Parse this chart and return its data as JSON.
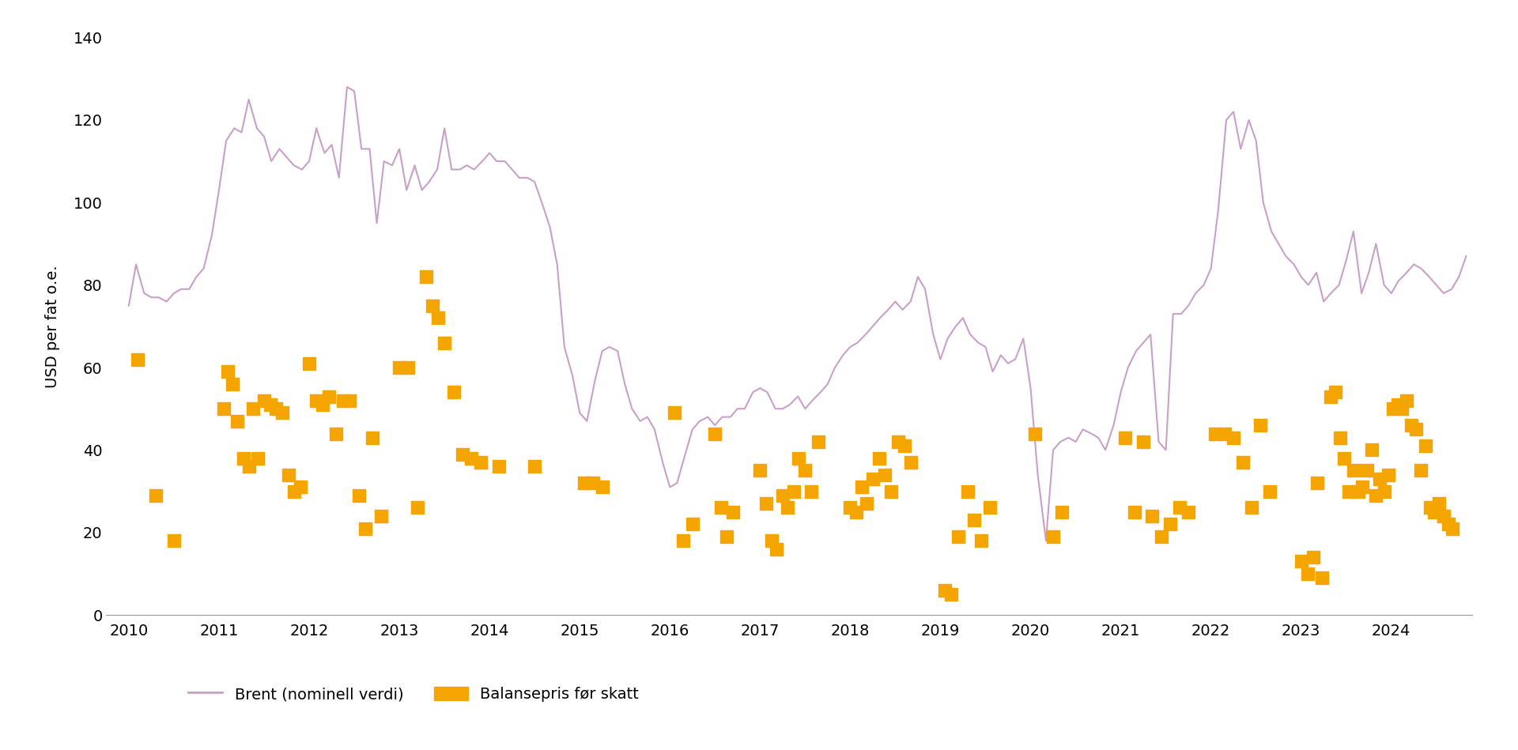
{
  "title": "",
  "ylabel": "USD per fat o.e.",
  "background_color": "#ffffff",
  "line_color": "#c9a0c9",
  "scatter_color": "#f5a500",
  "legend_line_label": "Brent (nominell verdi)",
  "legend_scatter_label": "Balansepris før skatt",
  "ylim": [
    0,
    140
  ],
  "yticks": [
    0,
    20,
    40,
    60,
    80,
    100,
    120,
    140
  ],
  "xlim": [
    2009.75,
    2024.9
  ],
  "brent_data": [
    [
      2010.0,
      75
    ],
    [
      2010.08,
      85
    ],
    [
      2010.17,
      78
    ],
    [
      2010.25,
      77
    ],
    [
      2010.33,
      77
    ],
    [
      2010.42,
      76
    ],
    [
      2010.5,
      78
    ],
    [
      2010.58,
      79
    ],
    [
      2010.67,
      79
    ],
    [
      2010.75,
      82
    ],
    [
      2010.83,
      84
    ],
    [
      2010.92,
      92
    ],
    [
      2011.0,
      103
    ],
    [
      2011.08,
      115
    ],
    [
      2011.17,
      118
    ],
    [
      2011.25,
      117
    ],
    [
      2011.33,
      125
    ],
    [
      2011.42,
      118
    ],
    [
      2011.5,
      116
    ],
    [
      2011.58,
      110
    ],
    [
      2011.67,
      113
    ],
    [
      2011.75,
      111
    ],
    [
      2011.83,
      109
    ],
    [
      2011.92,
      108
    ],
    [
      2012.0,
      110
    ],
    [
      2012.08,
      118
    ],
    [
      2012.17,
      112
    ],
    [
      2012.25,
      114
    ],
    [
      2012.33,
      106
    ],
    [
      2012.42,
      128
    ],
    [
      2012.5,
      127
    ],
    [
      2012.58,
      113
    ],
    [
      2012.67,
      113
    ],
    [
      2012.75,
      95
    ],
    [
      2012.83,
      110
    ],
    [
      2012.92,
      109
    ],
    [
      2013.0,
      113
    ],
    [
      2013.08,
      103
    ],
    [
      2013.17,
      109
    ],
    [
      2013.25,
      103
    ],
    [
      2013.33,
      105
    ],
    [
      2013.42,
      108
    ],
    [
      2013.5,
      118
    ],
    [
      2013.58,
      108
    ],
    [
      2013.67,
      108
    ],
    [
      2013.75,
      109
    ],
    [
      2013.83,
      108
    ],
    [
      2013.92,
      110
    ],
    [
      2014.0,
      112
    ],
    [
      2014.08,
      110
    ],
    [
      2014.17,
      110
    ],
    [
      2014.25,
      108
    ],
    [
      2014.33,
      106
    ],
    [
      2014.42,
      106
    ],
    [
      2014.5,
      105
    ],
    [
      2014.58,
      100
    ],
    [
      2014.67,
      94
    ],
    [
      2014.75,
      85
    ],
    [
      2014.83,
      65
    ],
    [
      2014.92,
      58
    ],
    [
      2015.0,
      49
    ],
    [
      2015.08,
      47
    ],
    [
      2015.17,
      57
    ],
    [
      2015.25,
      64
    ],
    [
      2015.33,
      65
    ],
    [
      2015.42,
      64
    ],
    [
      2015.5,
      56
    ],
    [
      2015.58,
      50
    ],
    [
      2015.67,
      47
    ],
    [
      2015.75,
      48
    ],
    [
      2015.83,
      45
    ],
    [
      2015.92,
      37
    ],
    [
      2016.0,
      31
    ],
    [
      2016.08,
      32
    ],
    [
      2016.17,
      39
    ],
    [
      2016.25,
      45
    ],
    [
      2016.33,
      47
    ],
    [
      2016.42,
      48
    ],
    [
      2016.5,
      46
    ],
    [
      2016.58,
      48
    ],
    [
      2016.67,
      48
    ],
    [
      2016.75,
      50
    ],
    [
      2016.83,
      50
    ],
    [
      2016.92,
      54
    ],
    [
      2017.0,
      55
    ],
    [
      2017.08,
      54
    ],
    [
      2017.17,
      50
    ],
    [
      2017.25,
      50
    ],
    [
      2017.33,
      51
    ],
    [
      2017.42,
      53
    ],
    [
      2017.5,
      50
    ],
    [
      2017.58,
      52
    ],
    [
      2017.67,
      54
    ],
    [
      2017.75,
      56
    ],
    [
      2017.83,
      60
    ],
    [
      2017.92,
      63
    ],
    [
      2018.0,
      65
    ],
    [
      2018.08,
      66
    ],
    [
      2018.17,
      68
    ],
    [
      2018.25,
      70
    ],
    [
      2018.33,
      72
    ],
    [
      2018.42,
      74
    ],
    [
      2018.5,
      76
    ],
    [
      2018.58,
      74
    ],
    [
      2018.67,
      76
    ],
    [
      2018.75,
      82
    ],
    [
      2018.83,
      79
    ],
    [
      2018.92,
      68
    ],
    [
      2019.0,
      62
    ],
    [
      2019.08,
      67
    ],
    [
      2019.17,
      70
    ],
    [
      2019.25,
      72
    ],
    [
      2019.33,
      68
    ],
    [
      2019.42,
      66
    ],
    [
      2019.5,
      65
    ],
    [
      2019.58,
      59
    ],
    [
      2019.67,
      63
    ],
    [
      2019.75,
      61
    ],
    [
      2019.83,
      62
    ],
    [
      2019.92,
      67
    ],
    [
      2020.0,
      55
    ],
    [
      2020.08,
      34
    ],
    [
      2020.17,
      18
    ],
    [
      2020.25,
      40
    ],
    [
      2020.33,
      42
    ],
    [
      2020.42,
      43
    ],
    [
      2020.5,
      42
    ],
    [
      2020.58,
      45
    ],
    [
      2020.67,
      44
    ],
    [
      2020.75,
      43
    ],
    [
      2020.83,
      40
    ],
    [
      2020.92,
      46
    ],
    [
      2021.0,
      54
    ],
    [
      2021.08,
      60
    ],
    [
      2021.17,
      64
    ],
    [
      2021.25,
      66
    ],
    [
      2021.33,
      68
    ],
    [
      2021.42,
      42
    ],
    [
      2021.5,
      40
    ],
    [
      2021.58,
      73
    ],
    [
      2021.67,
      73
    ],
    [
      2021.75,
      75
    ],
    [
      2021.83,
      78
    ],
    [
      2021.92,
      80
    ],
    [
      2022.0,
      84
    ],
    [
      2022.08,
      98
    ],
    [
      2022.17,
      120
    ],
    [
      2022.25,
      122
    ],
    [
      2022.33,
      113
    ],
    [
      2022.42,
      120
    ],
    [
      2022.5,
      115
    ],
    [
      2022.58,
      100
    ],
    [
      2022.67,
      93
    ],
    [
      2022.75,
      90
    ],
    [
      2022.83,
      87
    ],
    [
      2022.92,
      85
    ],
    [
      2023.0,
      82
    ],
    [
      2023.08,
      80
    ],
    [
      2023.17,
      83
    ],
    [
      2023.25,
      76
    ],
    [
      2023.33,
      78
    ],
    [
      2023.42,
      80
    ],
    [
      2023.5,
      86
    ],
    [
      2023.58,
      93
    ],
    [
      2023.67,
      78
    ],
    [
      2023.75,
      83
    ],
    [
      2023.83,
      90
    ],
    [
      2023.92,
      80
    ],
    [
      2024.0,
      78
    ],
    [
      2024.08,
      81
    ],
    [
      2024.17,
      83
    ],
    [
      2024.25,
      85
    ],
    [
      2024.33,
      84
    ],
    [
      2024.42,
      82
    ],
    [
      2024.5,
      80
    ],
    [
      2024.58,
      78
    ],
    [
      2024.67,
      79
    ],
    [
      2024.75,
      82
    ],
    [
      2024.83,
      87
    ]
  ],
  "scatter_data": [
    [
      2010.1,
      62
    ],
    [
      2010.3,
      29
    ],
    [
      2010.5,
      18
    ],
    [
      2011.05,
      50
    ],
    [
      2011.1,
      59
    ],
    [
      2011.15,
      56
    ],
    [
      2011.2,
      47
    ],
    [
      2011.27,
      38
    ],
    [
      2011.33,
      36
    ],
    [
      2011.38,
      50
    ],
    [
      2011.43,
      38
    ],
    [
      2011.5,
      52
    ],
    [
      2011.57,
      51
    ],
    [
      2011.63,
      50
    ],
    [
      2011.7,
      49
    ],
    [
      2011.77,
      34
    ],
    [
      2011.83,
      30
    ],
    [
      2011.9,
      31
    ],
    [
      2012.0,
      61
    ],
    [
      2012.08,
      52
    ],
    [
      2012.15,
      51
    ],
    [
      2012.22,
      53
    ],
    [
      2012.3,
      44
    ],
    [
      2012.38,
      52
    ],
    [
      2012.45,
      52
    ],
    [
      2012.55,
      29
    ],
    [
      2012.62,
      21
    ],
    [
      2012.7,
      43
    ],
    [
      2012.8,
      24
    ],
    [
      2013.0,
      60
    ],
    [
      2013.1,
      60
    ],
    [
      2013.2,
      26
    ],
    [
      2013.3,
      82
    ],
    [
      2013.37,
      75
    ],
    [
      2013.43,
      72
    ],
    [
      2013.5,
      66
    ],
    [
      2013.6,
      54
    ],
    [
      2013.7,
      39
    ],
    [
      2013.8,
      38
    ],
    [
      2013.9,
      37
    ],
    [
      2014.1,
      36
    ],
    [
      2014.5,
      36
    ],
    [
      2015.05,
      32
    ],
    [
      2015.15,
      32
    ],
    [
      2015.25,
      31
    ],
    [
      2016.05,
      49
    ],
    [
      2016.15,
      18
    ],
    [
      2016.25,
      22
    ],
    [
      2016.5,
      44
    ],
    [
      2016.57,
      26
    ],
    [
      2016.63,
      19
    ],
    [
      2016.7,
      25
    ],
    [
      2017.0,
      35
    ],
    [
      2017.07,
      27
    ],
    [
      2017.13,
      18
    ],
    [
      2017.18,
      16
    ],
    [
      2017.25,
      29
    ],
    [
      2017.3,
      26
    ],
    [
      2017.37,
      30
    ],
    [
      2017.43,
      38
    ],
    [
      2017.5,
      35
    ],
    [
      2017.57,
      30
    ],
    [
      2017.65,
      42
    ],
    [
      2018.0,
      26
    ],
    [
      2018.07,
      25
    ],
    [
      2018.13,
      31
    ],
    [
      2018.18,
      27
    ],
    [
      2018.25,
      33
    ],
    [
      2018.32,
      38
    ],
    [
      2018.38,
      34
    ],
    [
      2018.45,
      30
    ],
    [
      2018.53,
      42
    ],
    [
      2018.6,
      41
    ],
    [
      2018.67,
      37
    ],
    [
      2019.05,
      6
    ],
    [
      2019.12,
      5
    ],
    [
      2019.2,
      19
    ],
    [
      2019.3,
      30
    ],
    [
      2019.37,
      23
    ],
    [
      2019.45,
      18
    ],
    [
      2019.55,
      26
    ],
    [
      2020.05,
      44
    ],
    [
      2020.25,
      19
    ],
    [
      2020.35,
      25
    ],
    [
      2021.05,
      43
    ],
    [
      2021.15,
      25
    ],
    [
      2021.25,
      42
    ],
    [
      2021.35,
      24
    ],
    [
      2021.45,
      19
    ],
    [
      2021.55,
      22
    ],
    [
      2021.65,
      26
    ],
    [
      2021.75,
      25
    ],
    [
      2022.05,
      44
    ],
    [
      2022.15,
      44
    ],
    [
      2022.25,
      43
    ],
    [
      2022.35,
      37
    ],
    [
      2022.45,
      26
    ],
    [
      2022.55,
      46
    ],
    [
      2022.65,
      30
    ],
    [
      2023.0,
      13
    ],
    [
      2023.07,
      10
    ],
    [
      2023.13,
      14
    ],
    [
      2023.18,
      32
    ],
    [
      2023.23,
      9
    ],
    [
      2023.33,
      53
    ],
    [
      2023.38,
      54
    ],
    [
      2023.43,
      43
    ],
    [
      2023.48,
      38
    ],
    [
      2023.53,
      30
    ],
    [
      2023.58,
      35
    ],
    [
      2023.63,
      30
    ],
    [
      2023.68,
      31
    ],
    [
      2023.73,
      35
    ],
    [
      2023.78,
      40
    ],
    [
      2023.83,
      29
    ],
    [
      2023.87,
      33
    ],
    [
      2023.92,
      30
    ],
    [
      2023.97,
      34
    ],
    [
      2024.02,
      50
    ],
    [
      2024.07,
      51
    ],
    [
      2024.12,
      50
    ],
    [
      2024.17,
      52
    ],
    [
      2024.22,
      46
    ],
    [
      2024.27,
      45
    ],
    [
      2024.33,
      35
    ],
    [
      2024.38,
      41
    ],
    [
      2024.43,
      26
    ],
    [
      2024.48,
      25
    ],
    [
      2024.53,
      27
    ],
    [
      2024.58,
      24
    ],
    [
      2024.63,
      22
    ],
    [
      2024.68,
      21
    ]
  ]
}
